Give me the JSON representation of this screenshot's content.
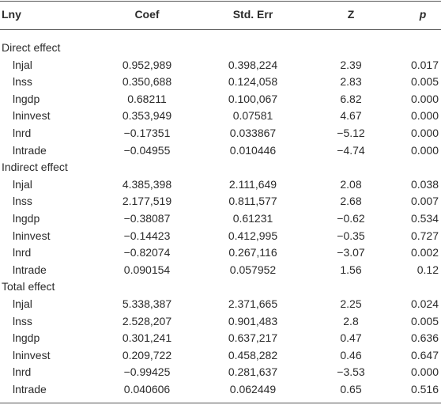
{
  "table": {
    "columns": [
      "Lny",
      "Coef",
      "Std. Err",
      "Z",
      "p"
    ],
    "sections": [
      {
        "title": "Direct effect",
        "rows": [
          [
            "lnjal",
            "0.952,989",
            "0.398,224",
            "2.39",
            "0.017"
          ],
          [
            "lnss",
            "0.350,688",
            "0.124,058",
            "2.83",
            "0.005"
          ],
          [
            "lngdp",
            "0.68211",
            "0.100,067",
            "6.82",
            "0.000"
          ],
          [
            "lninvest",
            "0.353,949",
            "0.07581",
            "4.67",
            "0.000"
          ],
          [
            "lnrd",
            "−0.17351",
            "0.033867",
            "−5.12",
            "0.000"
          ],
          [
            "lntrade",
            "−0.04955",
            "0.010446",
            "−4.74",
            "0.000"
          ]
        ]
      },
      {
        "title": "Indirect effect",
        "rows": [
          [
            "lnjal",
            "4.385,398",
            "2.111,649",
            "2.08",
            "0.038"
          ],
          [
            "lnss",
            "2.177,519",
            "0.811,577",
            "2.68",
            "0.007"
          ],
          [
            "lngdp",
            "−0.38087",
            "0.61231",
            "−0.62",
            "0.534"
          ],
          [
            "lninvest",
            "−0.14423",
            "0.412,995",
            "−0.35",
            "0.727"
          ],
          [
            "lnrd",
            "−0.82074",
            "0.267,116",
            "−3.07",
            "0.002"
          ],
          [
            "lntrade",
            "0.090154",
            "0.057952",
            "1.56",
            "0.12"
          ]
        ]
      },
      {
        "title": "Total effect",
        "rows": [
          [
            "lnjal",
            "5.338,387",
            "2.371,665",
            "2.25",
            "0.024"
          ],
          [
            "lnss",
            "2.528,207",
            "0.901,483",
            "2.8",
            "0.005"
          ],
          [
            "lngdp",
            "0.301,241",
            "0.637,217",
            "0.47",
            "0.636"
          ],
          [
            "lninvest",
            "0.209,722",
            "0.458,282",
            "0.46",
            "0.647"
          ],
          [
            "lnrd",
            "−0.99425",
            "0.281,637",
            "−3.53",
            "0.000"
          ],
          [
            "lntrade",
            "0.040606",
            "0.062449",
            "0.65",
            "0.516"
          ]
        ]
      }
    ]
  }
}
